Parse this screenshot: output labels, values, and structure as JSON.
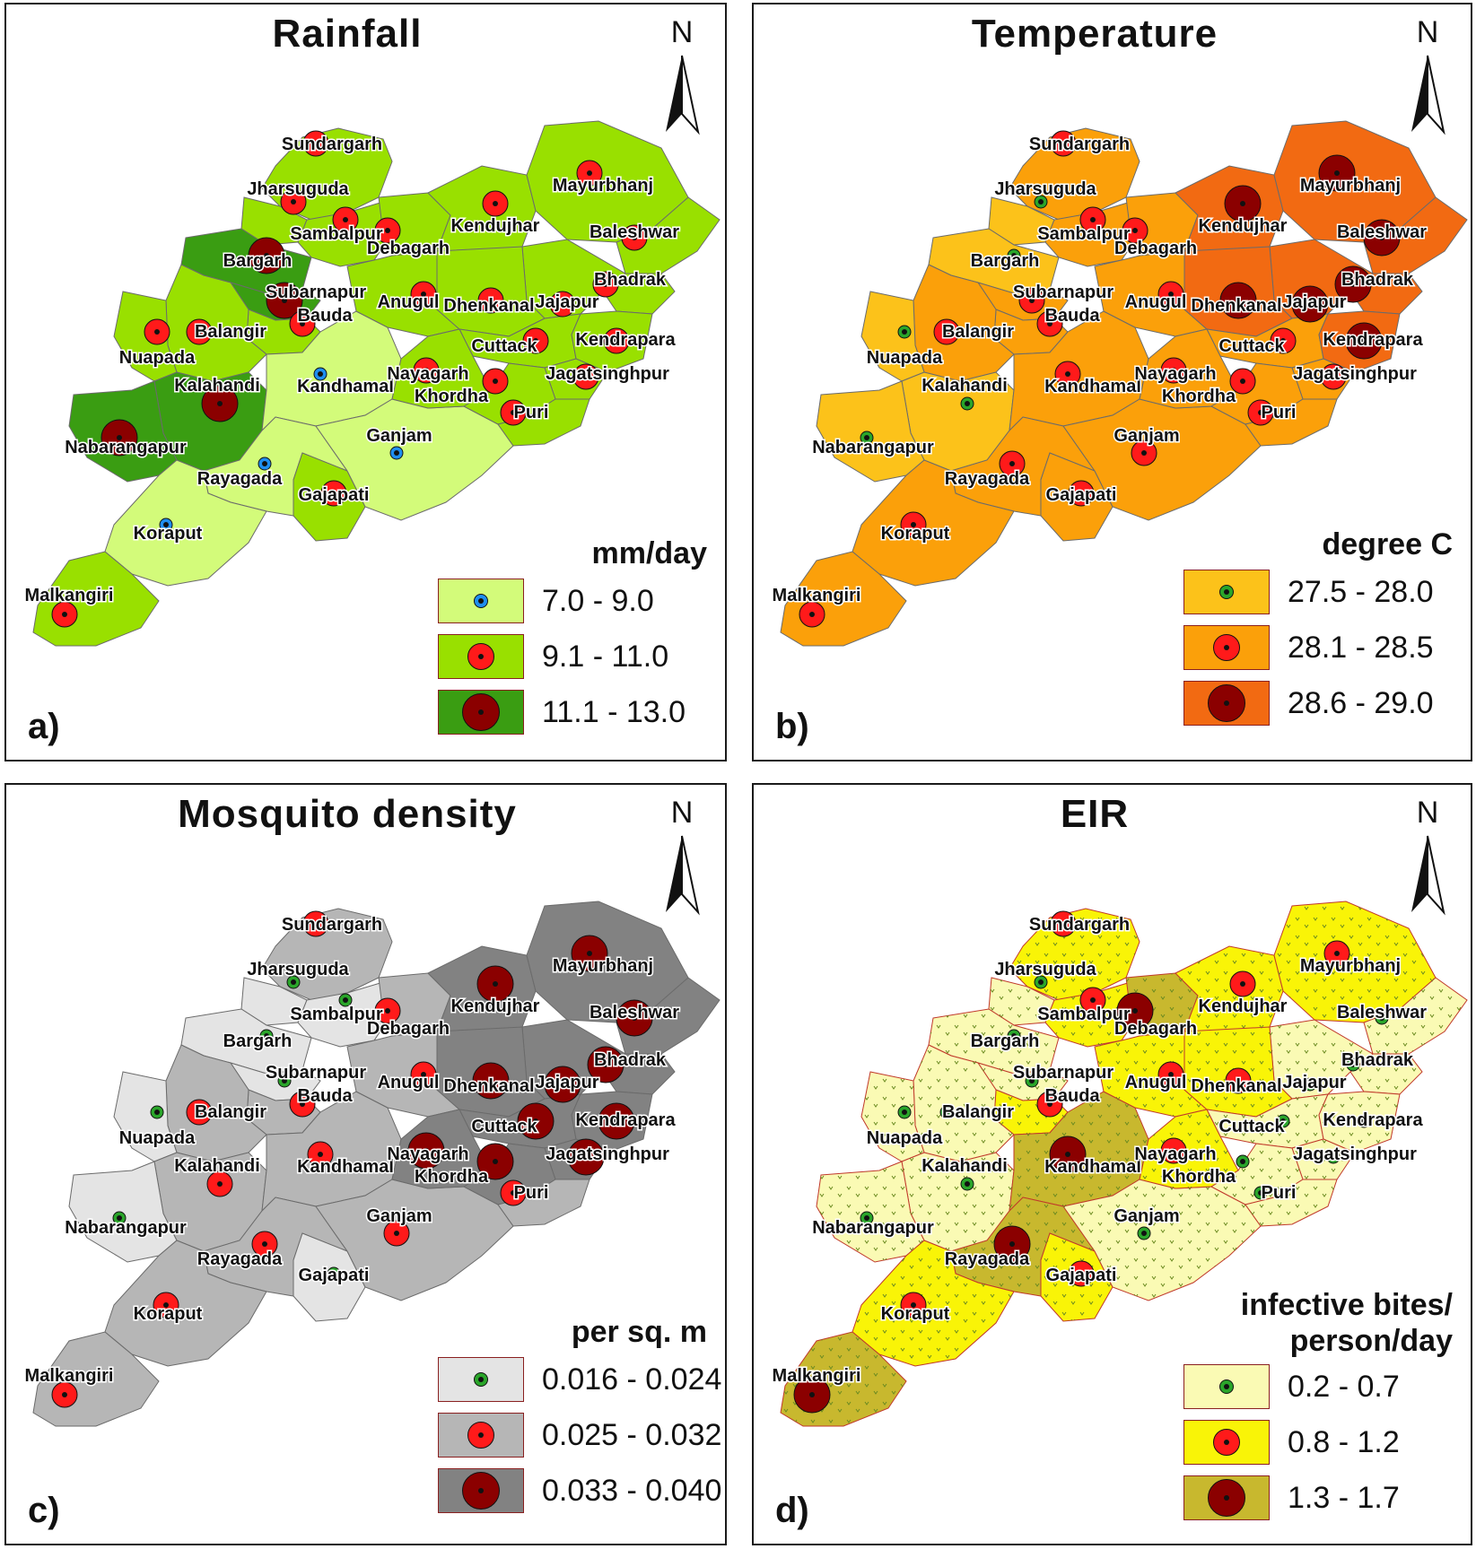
{
  "north_label": "N",
  "district_names": [
    "Sundargarh",
    "Jharsuguda",
    "Sambalpur",
    "Debagarh",
    "Bargarh",
    "Subarnapur",
    "Bauda",
    "Balangir",
    "Nuapada",
    "Kalahandi",
    "Nabarangapur",
    "Kandhamal",
    "Rayagada",
    "Gajapati",
    "Ganjam",
    "Koraput",
    "Malkangiri",
    "Anugul",
    "Kendujhar",
    "Mayurbhanj",
    "Baleshwar",
    "Bhadrak",
    "Jajapur",
    "Dhenkanal",
    "Cuttack",
    "Kendrapara",
    "Jagatsinghpur",
    "Nayagarh",
    "Khordha",
    "Puri"
  ],
  "panels": [
    {
      "letter": "a)",
      "title": "Rainfall",
      "legend_title": "mm/day",
      "colors": [
        "#d3fb7a",
        "#99e000",
        "#3a9d12"
      ],
      "classes": [
        {
          "range": "7.0 - 9.0",
          "symbol": "#1e8ef0"
        },
        {
          "range": "9.1 - 11.0",
          "symbol": "#ff1a1a"
        },
        {
          "range": "11.1 - 13.0",
          "symbol": "#8b0000"
        }
      ],
      "district_class": {
        "Sundargarh": 1,
        "Jharsuguda": 1,
        "Sambalpur": 1,
        "Debagarh": 1,
        "Bargarh": 2,
        "Subarnapur": 2,
        "Bauda": 1,
        "Balangir": 1,
        "Nuapada": 1,
        "Kalahandi": 2,
        "Nabarangapur": 2,
        "Kandhamal": 0,
        "Rayagada": 0,
        "Gajapati": 1,
        "Ganjam": 0,
        "Koraput": 0,
        "Malkangiri": 1,
        "Anugul": 1,
        "Kendujhar": 1,
        "Mayurbhanj": 1,
        "Baleshwar": 1,
        "Bhadrak": 1,
        "Jajapur": 1,
        "Dhenkanal": 1,
        "Cuttack": 1,
        "Kendrapara": 1,
        "Jagatsinghpur": 1,
        "Nayagarh": 1,
        "Khordha": 1,
        "Puri": 1
      }
    },
    {
      "letter": "b)",
      "title": "Temperature",
      "legend_title": "degree C",
      "colors": [
        "#fcc21a",
        "#fba00a",
        "#f26a12"
      ],
      "classes": [
        {
          "range": "27.5 - 28.0",
          "symbol": "#2aa52a"
        },
        {
          "range": "28.1 - 28.5",
          "symbol": "#ff1a1a"
        },
        {
          "range": "28.6 - 29.0",
          "symbol": "#8b0000"
        }
      ],
      "district_class": {
        "Sundargarh": 1,
        "Jharsuguda": 0,
        "Sambalpur": 1,
        "Debagarh": 1,
        "Bargarh": 0,
        "Subarnapur": 1,
        "Bauda": 1,
        "Balangir": 1,
        "Nuapada": 0,
        "Kalahandi": 0,
        "Nabarangapur": 0,
        "Kandhamal": 1,
        "Rayagada": 1,
        "Gajapati": 1,
        "Ganjam": 1,
        "Koraput": 1,
        "Malkangiri": 1,
        "Anugul": 1,
        "Kendujhar": 2,
        "Mayurbhanj": 2,
        "Baleshwar": 2,
        "Bhadrak": 2,
        "Jajapur": 2,
        "Dhenkanal": 2,
        "Cuttack": 1,
        "Kendrapara": 2,
        "Jagatsinghpur": 1,
        "Nayagarh": 1,
        "Khordha": 1,
        "Puri": 1
      }
    },
    {
      "letter": "c)",
      "title": "Mosquito density",
      "legend_title": "per sq. m",
      "colors": [
        "#e4e4e4",
        "#b6b6b6",
        "#828282"
      ],
      "classes": [
        {
          "range": "0.016 - 0.024",
          "symbol": "#2aa52a"
        },
        {
          "range": "0.025 - 0.032",
          "symbol": "#ff1a1a"
        },
        {
          "range": "0.033 - 0.040",
          "symbol": "#8b0000"
        }
      ],
      "district_class": {
        "Sundargarh": 1,
        "Jharsuguda": 0,
        "Sambalpur": 0,
        "Debagarh": 1,
        "Bargarh": 0,
        "Subarnapur": 0,
        "Bauda": 1,
        "Balangir": 1,
        "Nuapada": 0,
        "Kalahandi": 1,
        "Nabarangapur": 0,
        "Kandhamal": 1,
        "Rayagada": 1,
        "Gajapati": 0,
        "Ganjam": 1,
        "Koraput": 1,
        "Malkangiri": 1,
        "Anugul": 1,
        "Kendujhar": 2,
        "Mayurbhanj": 2,
        "Baleshwar": 2,
        "Bhadrak": 2,
        "Jajapur": 2,
        "Dhenkanal": 2,
        "Cuttack": 2,
        "Kendrapara": 2,
        "Jagatsinghpur": 2,
        "Nayagarh": 2,
        "Khordha": 2,
        "Puri": 1
      }
    },
    {
      "letter": "d)",
      "title": "EIR",
      "legend_title": "infective bites/\nperson/day",
      "colors": [
        "#fafab4",
        "#f9f407",
        "#c8b82e"
      ],
      "classes": [
        {
          "range": "0.2 - 0.7",
          "symbol": "#2aa52a"
        },
        {
          "range": "0.8 - 1.2",
          "symbol": "#ff1a1a"
        },
        {
          "range": "1.3 - 1.7",
          "symbol": "#8b0000"
        }
      ],
      "district_class": {
        "Sundargarh": 1,
        "Jharsuguda": 0,
        "Sambalpur": 1,
        "Debagarh": 2,
        "Bargarh": 0,
        "Subarnapur": 0,
        "Bauda": 1,
        "Balangir": 0,
        "Nuapada": 0,
        "Kalahandi": 0,
        "Nabarangapur": 0,
        "Kandhamal": 2,
        "Rayagada": 2,
        "Gajapati": 1,
        "Ganjam": 0,
        "Koraput": 1,
        "Malkangiri": 2,
        "Anugul": 1,
        "Kendujhar": 1,
        "Mayurbhanj": 1,
        "Baleshwar": 0,
        "Bhadrak": 0,
        "Jajapur": 0,
        "Dhenkanal": 1,
        "Cuttack": 0,
        "Kendrapara": 0,
        "Jagatsinghpur": 0,
        "Nayagarh": 1,
        "Khordha": 0,
        "Puri": 0
      }
    }
  ]
}
